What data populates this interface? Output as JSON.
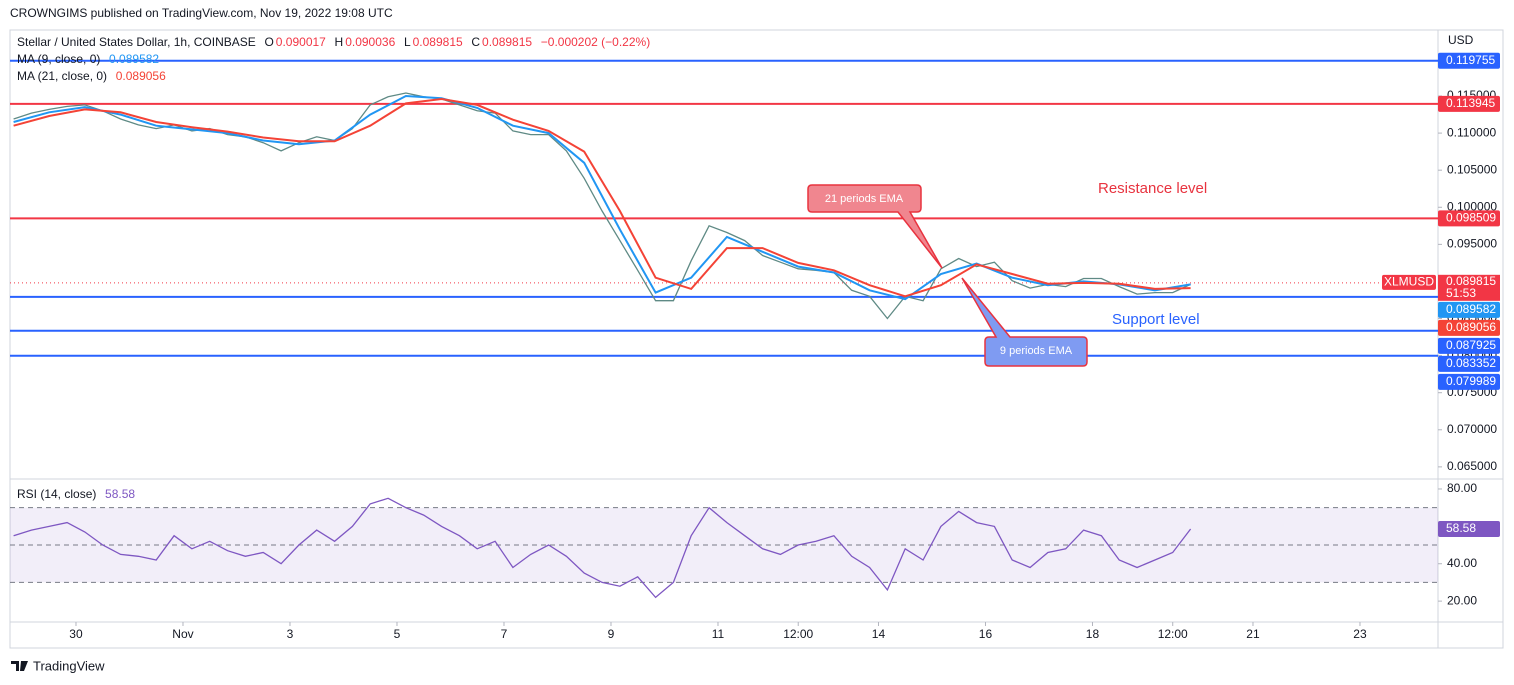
{
  "header": {
    "publisher": "CROWNGIMS published on TradingView.com, Nov 19, 2022 19:08 UTC",
    "brand": "TradingView"
  },
  "chart_data": [
    {
      "type": "line",
      "title": "Stellar / United States Dollar, 1h, COINBASE",
      "ohlc": [
        {
          "label": "O",
          "value": 0.090017
        },
        {
          "label": "H",
          "value": 0.090036
        },
        {
          "label": "L",
          "value": 0.089815
        },
        {
          "label": "C",
          "value": 0.089815
        }
      ],
      "change": "−0.000202 (−0.22%)",
      "y_unit": "USD",
      "xlim": [
        -29.6,
        611
      ],
      "xticks": [
        {
          "value": 0,
          "label": "30"
        },
        {
          "value": 48,
          "label": "Nov"
        },
        {
          "value": 96,
          "label": "3"
        },
        {
          "value": 144,
          "label": "5"
        },
        {
          "value": 192,
          "label": "7"
        },
        {
          "value": 240,
          "label": "9"
        },
        {
          "value": 288,
          "label": "11"
        },
        {
          "value": 324,
          "label": "12:00"
        },
        {
          "value": 360,
          "label": "14"
        },
        {
          "value": 408,
          "label": "16"
        },
        {
          "value": 456,
          "label": "18"
        },
        {
          "value": 492,
          "label": "12:00"
        },
        {
          "value": 528,
          "label": "21"
        },
        {
          "value": 576,
          "label": "23"
        }
      ],
      "ylim": [
        0.0635,
        0.1239
      ],
      "yticks": [
        {
          "value": 0.065,
          "label": "0.065000"
        },
        {
          "value": 0.07,
          "label": "0.070000"
        },
        {
          "value": 0.075,
          "label": "0.075000"
        },
        {
          "value": 0.08,
          "label": "0.080000"
        },
        {
          "value": 0.085,
          "label": "0.085000"
        },
        {
          "value": 0.09,
          "label": "0.090000"
        },
        {
          "value": 0.095,
          "label": "0.095000"
        },
        {
          "value": 0.1,
          "label": "0.100000"
        },
        {
          "value": 0.105,
          "label": "0.105000"
        },
        {
          "value": 0.11,
          "label": "0.110000"
        },
        {
          "value": 0.115,
          "label": "0.115000"
        }
      ],
      "series": [
        {
          "color": "#5f8a85",
          "x": [
            -28,
            -20,
            -12,
            -4,
            4,
            12,
            20,
            28,
            36,
            44,
            52,
            60,
            68,
            76,
            84,
            92,
            100,
            108,
            116,
            124,
            132,
            140,
            148,
            156,
            164,
            172,
            180,
            188,
            196,
            204,
            212,
            220,
            228,
            236,
            244,
            252,
            260,
            268,
            276,
            284,
            292,
            300,
            308,
            316,
            324,
            332,
            340,
            348,
            356,
            364,
            372,
            380,
            388,
            396,
            404,
            412,
            420,
            428,
            436,
            444,
            452,
            460,
            468,
            476,
            484,
            492,
            500
          ],
          "values": [
            0.1119,
            0.1127,
            0.1132,
            0.1136,
            0.1138,
            0.113,
            0.1119,
            0.1111,
            0.1106,
            0.1111,
            0.1103,
            0.1106,
            0.1098,
            0.1095,
            0.1087,
            0.1076,
            0.1087,
            0.1095,
            0.109,
            0.1106,
            0.1138,
            0.1149,
            0.1154,
            0.1149,
            0.1146,
            0.1138,
            0.113,
            0.1127,
            0.1103,
            0.1098,
            0.1098,
            0.1076,
            0.1039,
            0.0995,
            0.0955,
            0.0915,
            0.0874,
            0.0874,
            0.0928,
            0.0975,
            0.0966,
            0.0955,
            0.0935,
            0.0926,
            0.0917,
            0.0915,
            0.0912,
            0.0888,
            0.088,
            0.085,
            0.088,
            0.0874,
            0.0917,
            0.0931,
            0.092,
            0.0926,
            0.0901,
            0.0891,
            0.0896,
            0.0893,
            0.0904,
            0.0904,
            0.0893,
            0.0883,
            0.0885,
            0.0885,
            0.0896
          ]
        },
        {
          "name": "MA (9, close, 0)",
          "color": "#2196f3",
          "last": 0.089582,
          "x": [
            -28,
            -12,
            4,
            20,
            36,
            52,
            68,
            84,
            100,
            116,
            132,
            148,
            164,
            180,
            196,
            212,
            228,
            244,
            260,
            276,
            292,
            308,
            324,
            340,
            356,
            372,
            388,
            404,
            420,
            436,
            452,
            468,
            484,
            500
          ],
          "values": [
            0.1115,
            0.1128,
            0.1135,
            0.1125,
            0.111,
            0.1105,
            0.11,
            0.109,
            0.1085,
            0.109,
            0.1125,
            0.115,
            0.1147,
            0.1134,
            0.111,
            0.11,
            0.106,
            0.097,
            0.0885,
            0.0905,
            0.096,
            0.094,
            0.092,
            0.0912,
            0.0888,
            0.0876,
            0.091,
            0.0924,
            0.0905,
            0.0895,
            0.09,
            0.0896,
            0.0888,
            0.0896
          ]
        },
        {
          "name": "MA (21, close, 0)",
          "color": "#f44336",
          "last": 0.089056,
          "x": [
            -28,
            -12,
            4,
            20,
            36,
            52,
            68,
            84,
            100,
            116,
            132,
            148,
            164,
            180,
            196,
            212,
            228,
            244,
            260,
            276,
            292,
            308,
            324,
            340,
            356,
            372,
            388,
            404,
            420,
            436,
            452,
            468,
            484,
            500
          ],
          "values": [
            0.111,
            0.1123,
            0.1132,
            0.1128,
            0.1115,
            0.1108,
            0.1102,
            0.1094,
            0.1089,
            0.1089,
            0.111,
            0.114,
            0.1146,
            0.1138,
            0.1118,
            0.1103,
            0.1075,
            0.0995,
            0.0905,
            0.089,
            0.0945,
            0.0945,
            0.0925,
            0.0915,
            0.0895,
            0.088,
            0.0895,
            0.0923,
            0.091,
            0.0897,
            0.0898,
            0.0897,
            0.089,
            0.0891
          ]
        }
      ],
      "hlines": [
        {
          "value": 0.119755,
          "color": "#2962ff"
        },
        {
          "value": 0.113945,
          "color": "#f23645"
        },
        {
          "value": 0.098509,
          "color": "#f23645"
        },
        {
          "value": 0.087925,
          "color": "#2962ff"
        },
        {
          "value": 0.083352,
          "color": "#2962ff"
        },
        {
          "value": 0.079989,
          "color": "#2962ff"
        }
      ],
      "price_tag": {
        "symbol": "XLMUSD",
        "value": 0.089815,
        "countdown": "51:53",
        "color": "#f23645"
      },
      "annotations": [
        "Resistance level",
        "Support level",
        "21 periods EMA",
        "9 periods EMA"
      ]
    },
    {
      "type": "line",
      "title": "RSI (14, close)",
      "value": 58.58,
      "ylim": [
        9.9,
        84.8
      ],
      "yticks": [
        {
          "value": 20,
          "label": "20.00"
        },
        {
          "value": 40,
          "label": "40.00"
        },
        {
          "value": 60,
          "label": "60.00"
        },
        {
          "value": 80,
          "label": "80.00"
        }
      ],
      "levels": [
        70,
        50,
        30
      ],
      "series": [
        {
          "color": "#7e57c2",
          "values": [
            55,
            58,
            60,
            62,
            57,
            50,
            45,
            44,
            42,
            55,
            48,
            52,
            47,
            44,
            46,
            40,
            50,
            58,
            52,
            60,
            72,
            75,
            70,
            66,
            60,
            55,
            48,
            52,
            38,
            45,
            50,
            44,
            35,
            30,
            28,
            33,
            22,
            30,
            55,
            70,
            62,
            55,
            48,
            45,
            50,
            52,
            55,
            44,
            38,
            26,
            48,
            42,
            60,
            68,
            62,
            60,
            42,
            38,
            46,
            48,
            58,
            55,
            42,
            38,
            42,
            46,
            58.58
          ]
        }
      ]
    }
  ]
}
